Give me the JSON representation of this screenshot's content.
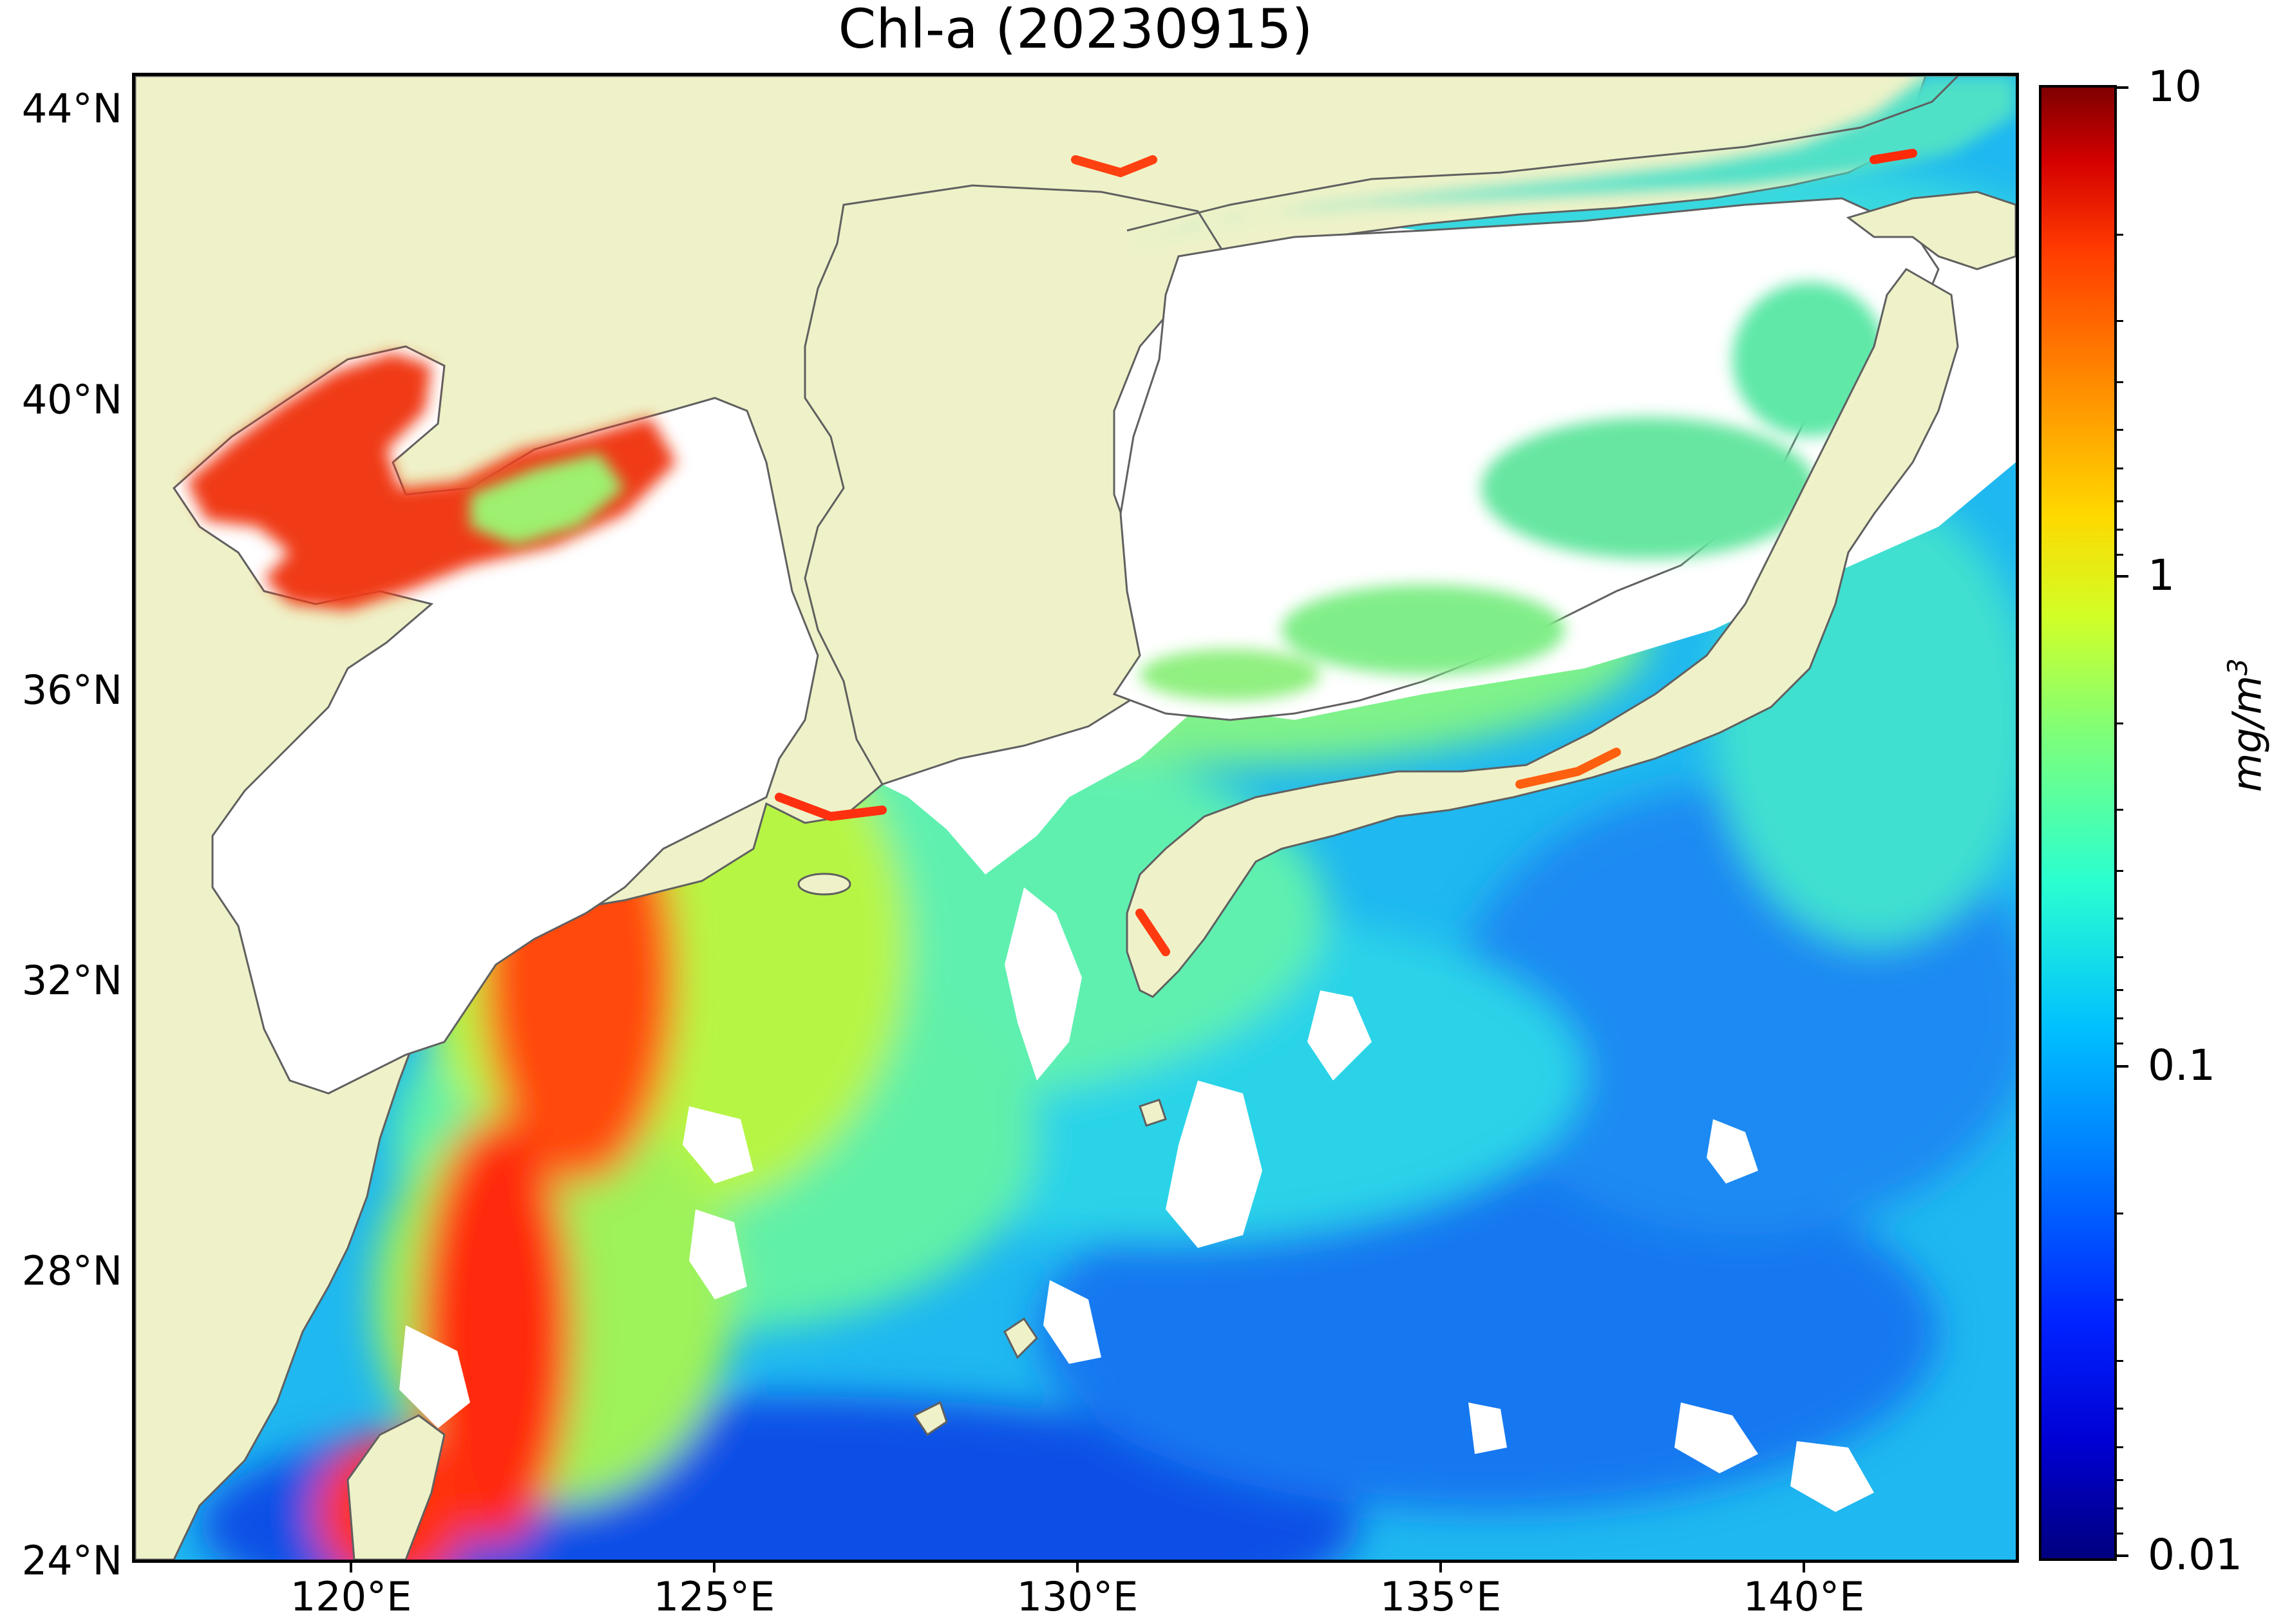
{
  "title": "Chl-a (20230915)",
  "map": {
    "extent": {
      "lon": [
        117,
        143
      ],
      "lat": [
        24,
        44.5
      ]
    },
    "land_color": "#eff2c8",
    "no_data_color": "#ffffff",
    "coastline_color": "#606060",
    "lat_ticks": [
      "44°N",
      "40°N",
      "36°N",
      "32°N",
      "28°N",
      "24°N"
    ],
    "lon_ticks": [
      "120°E",
      "125°E",
      "130°E",
      "135°E",
      "140°E"
    ]
  },
  "colorbar": {
    "scale": "log",
    "range": [
      0.01,
      10
    ],
    "tick_labels": [
      "10",
      "1",
      "0.1",
      "0.01"
    ],
    "unit_label": "mg/m",
    "unit_exponent": "3",
    "colormap": "jet"
  }
}
